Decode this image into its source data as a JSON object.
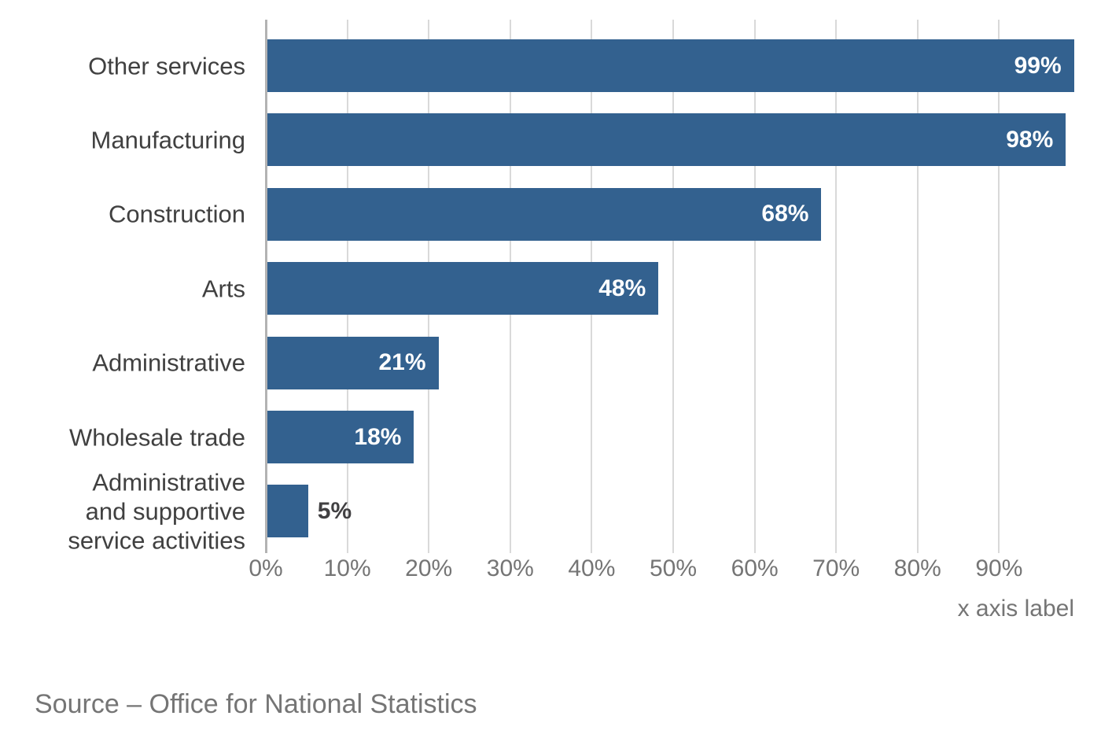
{
  "figure": {
    "x_axis_title": "x axis label",
    "source_note": "Source – Office for National Statistics"
  },
  "colors": {
    "background": "#FFFFFF",
    "bar": "#33618F",
    "bar_value_label_inside": "#FFFFFF",
    "bar_value_label_outside": "#414042",
    "gridline": "#D9D9D9",
    "axis_line": "#B3B3B3",
    "category_label": "#404040",
    "tick_label": "#757575",
    "axis_title": "#757575",
    "source_text": "#757575"
  },
  "chart_data": {
    "type": "bar",
    "orientation": "horizontal",
    "title": "",
    "xlabel": "x axis label",
    "ylabel": "",
    "xlim": [
      0,
      100
    ],
    "grid": "vertical",
    "legend": "none",
    "categories": [
      "Other services",
      "Manufacturing",
      "Construction",
      "Arts",
      "Administrative",
      "Wholesale trade",
      "Administrative and supportive service activities"
    ],
    "category_label_lines": [
      [
        "Other services"
      ],
      [
        "Manufacturing"
      ],
      [
        "Construction"
      ],
      [
        "Arts"
      ],
      [
        "Administrative"
      ],
      [
        "Wholesale trade"
      ],
      [
        "Administrative",
        "and supportive",
        "service activities"
      ]
    ],
    "values": [
      99,
      98,
      68,
      48,
      21,
      18,
      5
    ],
    "value_labels": [
      "99%",
      "98%",
      "68%",
      "48%",
      "21%",
      "18%",
      "5%"
    ],
    "x_tick_values": [
      0,
      10,
      20,
      30,
      40,
      50,
      60,
      70,
      80,
      90
    ],
    "x_tick_labels": [
      "0%",
      "10%",
      "20%",
      "30%",
      "40%",
      "50%",
      "60%",
      "70%",
      "80%",
      "90%"
    ],
    "source": "Source – Office for National Statistics"
  }
}
